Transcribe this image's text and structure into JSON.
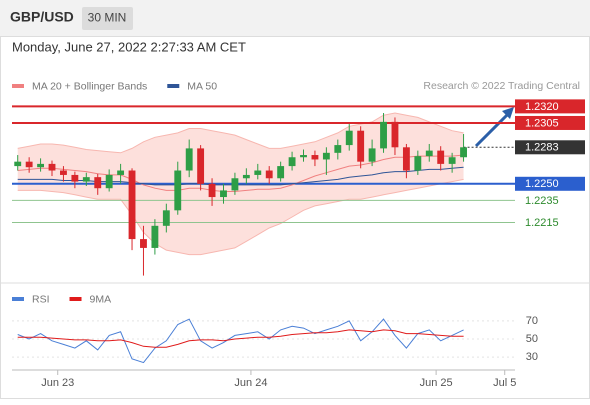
{
  "header": {
    "symbol": "GBP/USD",
    "interval": "30 MIN",
    "datetime": "Monday, June 27, 2022 2:27:33 AM CET"
  },
  "chart_data": [
    {
      "type": "candlestick",
      "legend": [
        {
          "name": "MA 20 + Bollinger Bands",
          "color": "#f08080"
        },
        {
          "name": "MA 50",
          "color": "#2f5597"
        }
      ],
      "credit": "Research © 2022 Trading Central",
      "up_color": "#2e9e46",
      "down_color": "#d9262b",
      "band_color": "#fde0dc",
      "xlim": [
        -0.5,
        43.5
      ],
      "xticks": [
        {
          "value": 3.5,
          "label": "Jun 23"
        },
        {
          "value": 20.4,
          "label": "Jun 24"
        },
        {
          "value": 36.6,
          "label": "Jun 25"
        },
        {
          "value": 42.6,
          "label": "Jul 5"
        }
      ],
      "ylim": [
        1.2163,
        1.2333
      ],
      "open": [
        1.2266,
        1.227,
        1.2265,
        1.2268,
        1.2262,
        1.2258,
        1.2252,
        1.2256,
        1.2246,
        1.2258,
        1.2262,
        1.22,
        1.2192,
        1.2212,
        1.2226,
        1.2262,
        1.2282,
        1.225,
        1.2238,
        1.2244,
        1.2255,
        1.2258,
        1.2262,
        1.2255,
        1.2266,
        1.2274,
        1.2276,
        1.2272,
        1.2278,
        1.2285,
        1.2298,
        1.227,
        1.2282,
        1.2306,
        1.2283,
        1.2262,
        1.2275,
        1.228,
        1.2268,
        1.2274
      ],
      "high": [
        1.2276,
        1.2274,
        1.2273,
        1.2271,
        1.2266,
        1.2261,
        1.226,
        1.2259,
        1.2263,
        1.2268,
        1.2264,
        1.2212,
        1.2218,
        1.2232,
        1.227,
        1.229,
        1.2285,
        1.2255,
        1.225,
        1.226,
        1.2264,
        1.2268,
        1.2266,
        1.227,
        1.2279,
        1.2281,
        1.228,
        1.2283,
        1.229,
        1.2304,
        1.2302,
        1.229,
        1.2314,
        1.231,
        1.2286,
        1.228,
        1.2286,
        1.2284,
        1.2278,
        1.2295
      ],
      "low": [
        1.2262,
        1.226,
        1.2261,
        1.2257,
        1.2252,
        1.2246,
        1.2248,
        1.224,
        1.2243,
        1.225,
        1.219,
        1.2167,
        1.2186,
        1.2206,
        1.2222,
        1.2256,
        1.2244,
        1.223,
        1.2232,
        1.224,
        1.225,
        1.2254,
        1.225,
        1.2252,
        1.2262,
        1.227,
        1.2266,
        1.2258,
        1.2272,
        1.228,
        1.2264,
        1.2266,
        1.2278,
        1.2276,
        1.2255,
        1.2258,
        1.227,
        1.2262,
        1.226,
        1.227
      ],
      "close": [
        1.227,
        1.2265,
        1.2268,
        1.2262,
        1.2258,
        1.2252,
        1.2256,
        1.2246,
        1.2258,
        1.2262,
        1.22,
        1.2192,
        1.2212,
        1.2226,
        1.2262,
        1.2282,
        1.225,
        1.2238,
        1.2244,
        1.2255,
        1.2258,
        1.2262,
        1.2255,
        1.2266,
        1.2274,
        1.2276,
        1.2272,
        1.2278,
        1.2285,
        1.2298,
        1.227,
        1.2282,
        1.2306,
        1.2283,
        1.2262,
        1.2275,
        1.228,
        1.2268,
        1.2274,
        1.2283
      ],
      "ma20": [
        1.2262,
        1.2263,
        1.2264,
        1.2264,
        1.2263,
        1.2262,
        1.2261,
        1.2259,
        1.2258,
        1.2258,
        1.2254,
        1.2249,
        1.2246,
        1.2244,
        1.2244,
        1.2246,
        1.2246,
        1.2244,
        1.2243,
        1.2243,
        1.2244,
        1.2245,
        1.2245,
        1.2246,
        1.2249,
        1.2253,
        1.2257,
        1.226,
        1.2263,
        1.2266,
        1.2267,
        1.2269,
        1.2272,
        1.2274,
        1.2274,
        1.2275,
        1.2275,
        1.2275,
        1.2275,
        1.2276
      ],
      "ma50": [
        1.2254,
        1.2254,
        1.2254,
        1.2254,
        1.2253,
        1.2253,
        1.2253,
        1.2252,
        1.2252,
        1.2252,
        1.2251,
        1.225,
        1.2249,
        1.2249,
        1.2249,
        1.225,
        1.225,
        1.2249,
        1.2249,
        1.2249,
        1.2249,
        1.2249,
        1.2249,
        1.2249,
        1.225,
        1.2251,
        1.2252,
        1.2253,
        1.2254,
        1.2256,
        1.2257,
        1.2258,
        1.226,
        1.2261,
        1.2261,
        1.2262,
        1.2263,
        1.2263,
        1.2264,
        1.2265
      ],
      "bb_upper": [
        1.2282,
        1.2284,
        1.2286,
        1.2286,
        1.2285,
        1.2283,
        1.2281,
        1.228,
        1.2279,
        1.2278,
        1.2282,
        1.2288,
        1.2292,
        1.2294,
        1.2296,
        1.23,
        1.23,
        1.2298,
        1.2296,
        1.2294,
        1.229,
        1.2286,
        1.2282,
        1.2282,
        1.2284,
        1.2286,
        1.2288,
        1.2292,
        1.2296,
        1.2302,
        1.2304,
        1.2306,
        1.2312,
        1.2314,
        1.2312,
        1.231,
        1.2306,
        1.2302,
        1.2298,
        1.2296
      ],
      "bb_lower": [
        1.2244,
        1.2244,
        1.2244,
        1.2243,
        1.2242,
        1.224,
        1.2238,
        1.2236,
        1.2236,
        1.2236,
        1.2222,
        1.2206,
        1.2196,
        1.219,
        1.2188,
        1.2186,
        1.2186,
        1.2188,
        1.219,
        1.2192,
        1.2198,
        1.2204,
        1.221,
        1.2214,
        1.222,
        1.2226,
        1.223,
        1.2232,
        1.2234,
        1.2236,
        1.2236,
        1.2238,
        1.224,
        1.2242,
        1.2244,
        1.2246,
        1.2248,
        1.225,
        1.2252,
        1.2254
      ],
      "levels": [
        {
          "value": 1.232,
          "label": "1.2320",
          "color": "#d9262b",
          "style": "box"
        },
        {
          "value": 1.2305,
          "label": "1.2305",
          "color": "#d9262b",
          "style": "box"
        },
        {
          "value": 1.2283,
          "label": "1.2283",
          "color": "#333333",
          "style": "current"
        },
        {
          "value": 1.225,
          "label": "1.2250",
          "color": "#2b5fce",
          "style": "box"
        },
        {
          "value": 1.2235,
          "label": "1.2235",
          "color": "#2e8b2e",
          "style": "text"
        },
        {
          "value": 1.2215,
          "label": "1.2215",
          "color": "#2e8b2e",
          "style": "text"
        }
      ]
    },
    {
      "type": "line",
      "xlim": [
        -0.5,
        43.5
      ],
      "ylim": [
        18,
        82
      ],
      "yticks": [
        70,
        50,
        30
      ],
      "series": [
        {
          "name": "RSI",
          "color": "#4a7fd6",
          "values": [
            55,
            50,
            56,
            48,
            44,
            40,
            48,
            38,
            54,
            58,
            28,
            24,
            40,
            48,
            66,
            72,
            48,
            40,
            46,
            54,
            56,
            58,
            50,
            60,
            64,
            62,
            56,
            60,
            64,
            70,
            48,
            58,
            72,
            54,
            40,
            56,
            60,
            48,
            54,
            60
          ]
        },
        {
          "name": "9MA",
          "color": "#e01b1b",
          "values": [
            52,
            52,
            52,
            51,
            50,
            49,
            49,
            48,
            48,
            49,
            46,
            42,
            41,
            41,
            44,
            48,
            49,
            49,
            48,
            50,
            51,
            52,
            52,
            53,
            55,
            56,
            57,
            57,
            58,
            60,
            59,
            58,
            60,
            59,
            56,
            56,
            55,
            54,
            53,
            53
          ]
        }
      ]
    }
  ]
}
